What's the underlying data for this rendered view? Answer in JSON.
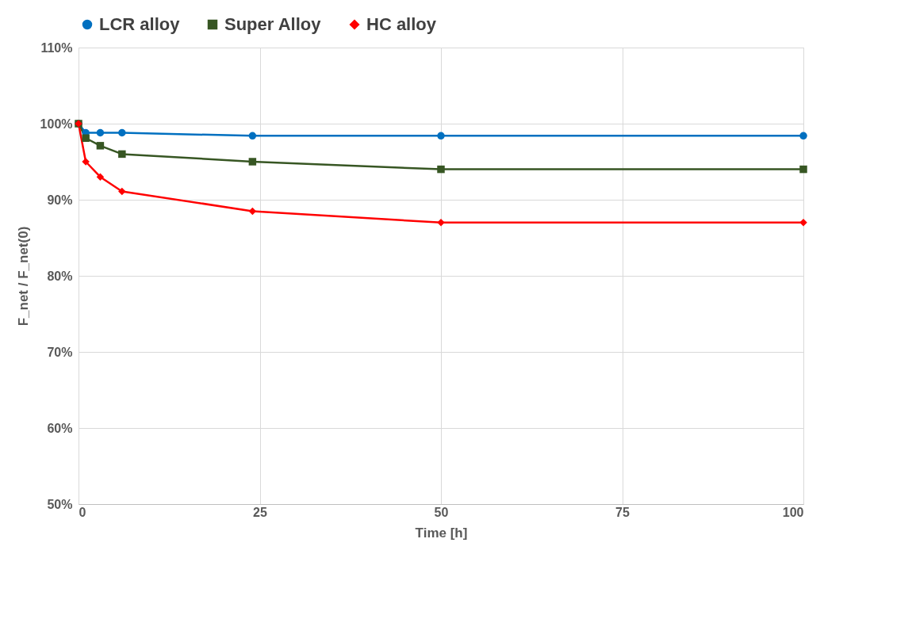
{
  "chart_data": {
    "type": "line",
    "xlabel": "Time [h]",
    "ylabel": "F_net / F_net(0)",
    "x": [
      0,
      1,
      3,
      6,
      24,
      50,
      100
    ],
    "series": [
      {
        "name": "LCR alloy",
        "color": "#0070c0",
        "marker": "circle",
        "values": [
          100,
          98.8,
          98.8,
          98.8,
          98.4,
          98.4,
          98.4
        ]
      },
      {
        "name": "Super Alloy",
        "color": "#375623",
        "marker": "square",
        "values": [
          100,
          98.1,
          97.1,
          96.0,
          95.0,
          94.0,
          94.0
        ]
      },
      {
        "name": "HC alloy",
        "color": "#ff0000",
        "marker": "diamond",
        "values": [
          100,
          95.0,
          93.0,
          91.1,
          88.5,
          87.0,
          87.0
        ]
      }
    ],
    "xlim": [
      0,
      100
    ],
    "xticks": [
      0,
      25,
      50,
      75,
      100
    ],
    "ylim": [
      50,
      110
    ],
    "yticks": [
      {
        "value": 50,
        "label": "50%"
      },
      {
        "value": 60,
        "label": "60%"
      },
      {
        "value": 70,
        "label": "70%"
      },
      {
        "value": 80,
        "label": "80%"
      },
      {
        "value": 90,
        "label": "90%"
      },
      {
        "value": 100,
        "label": "100%"
      },
      {
        "value": 110,
        "label": "110%"
      }
    ],
    "grid": true,
    "legend": "top",
    "line_style": "solid"
  }
}
